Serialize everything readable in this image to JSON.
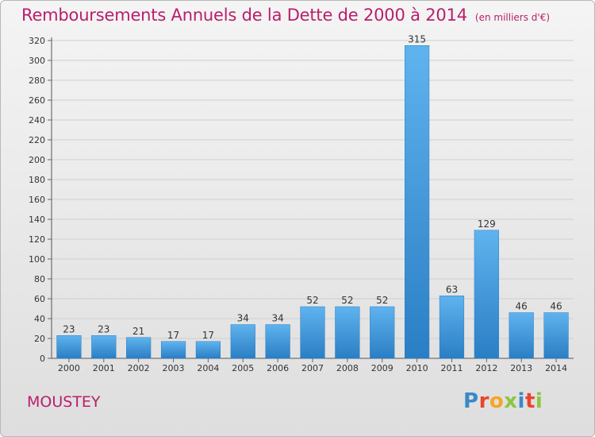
{
  "header": {
    "title": "Remboursements Annuels de la Dette de 2000 à 2014",
    "subtitle": "(en milliers d'€)"
  },
  "footer": {
    "commune": "MOUSTEY",
    "logo_text": "Proxiti",
    "logo_letters": [
      {
        "ch": "P",
        "color": "#3a89c9"
      },
      {
        "ch": "r",
        "color": "#e8452c"
      },
      {
        "ch": "o",
        "color": "#f5a623"
      },
      {
        "ch": "x",
        "color": "#8cc63f"
      },
      {
        "ch": "i",
        "color": "#3a89c9"
      },
      {
        "ch": "t",
        "color": "#e8452c"
      },
      {
        "ch": "i",
        "color": "#8cc63f"
      }
    ]
  },
  "colors": {
    "bar_light": "#5fb3ee",
    "bar_dark": "#2a7ec4",
    "accent": "#b81f6b",
    "grid": "#cfcfcf"
  },
  "chart_data": {
    "type": "bar",
    "title": "Remboursements Annuels de la Dette de 2000 à 2014",
    "subtitle": "(en milliers d'€)",
    "xlabel": "",
    "ylabel": "",
    "categories": [
      "2000",
      "2001",
      "2002",
      "2003",
      "2004",
      "2005",
      "2006",
      "2007",
      "2008",
      "2009",
      "2010",
      "2011",
      "2012",
      "2013",
      "2014"
    ],
    "values": [
      23,
      23,
      21,
      17,
      17,
      34,
      34,
      52,
      52,
      52,
      315,
      63,
      129,
      46,
      46
    ],
    "ylim": [
      0,
      320
    ],
    "yticks": [
      0,
      20,
      40,
      60,
      80,
      100,
      120,
      140,
      160,
      180,
      200,
      220,
      240,
      260,
      280,
      300,
      320
    ],
    "grid": true,
    "legend": "none"
  }
}
